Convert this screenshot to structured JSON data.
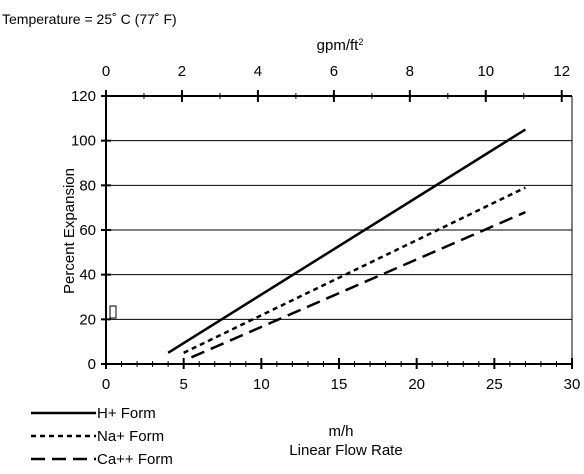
{
  "chart_data": {
    "type": "line",
    "note": "Temperature = 25˚ C (77˚ F)",
    "xlabel": "m/h",
    "xlabel2": "Linear Flow Rate",
    "ylabel": "Percent  Expansion",
    "top_axis_label": "gpm/ft",
    "top_axis_label_sup": "2",
    "xlim": [
      0,
      30
    ],
    "ylim": [
      0,
      120
    ],
    "x_ticks": [
      "0",
      "5",
      "10",
      "15",
      "20",
      "25",
      "30"
    ],
    "y_ticks": [
      "0",
      "20",
      "40",
      "60",
      "80",
      "100",
      "120"
    ],
    "top_xlim": [
      0,
      12.27
    ],
    "top_ticks": [
      "0",
      "2",
      "4",
      "6",
      "8",
      "10",
      "12"
    ],
    "grid": "horizontal",
    "legend_position": "bottom-left",
    "series": [
      {
        "name": "H+ Form",
        "style": "solid",
        "x": [
          4,
          27
        ],
        "y": [
          5,
          105
        ]
      },
      {
        "name": "Na+ Form",
        "style": "dotted",
        "x": [
          5,
          27
        ],
        "y": [
          5,
          79
        ]
      },
      {
        "name": "Ca++ Form",
        "style": "dashed",
        "x": [
          5.5,
          27
        ],
        "y": [
          3,
          68
        ]
      }
    ]
  }
}
